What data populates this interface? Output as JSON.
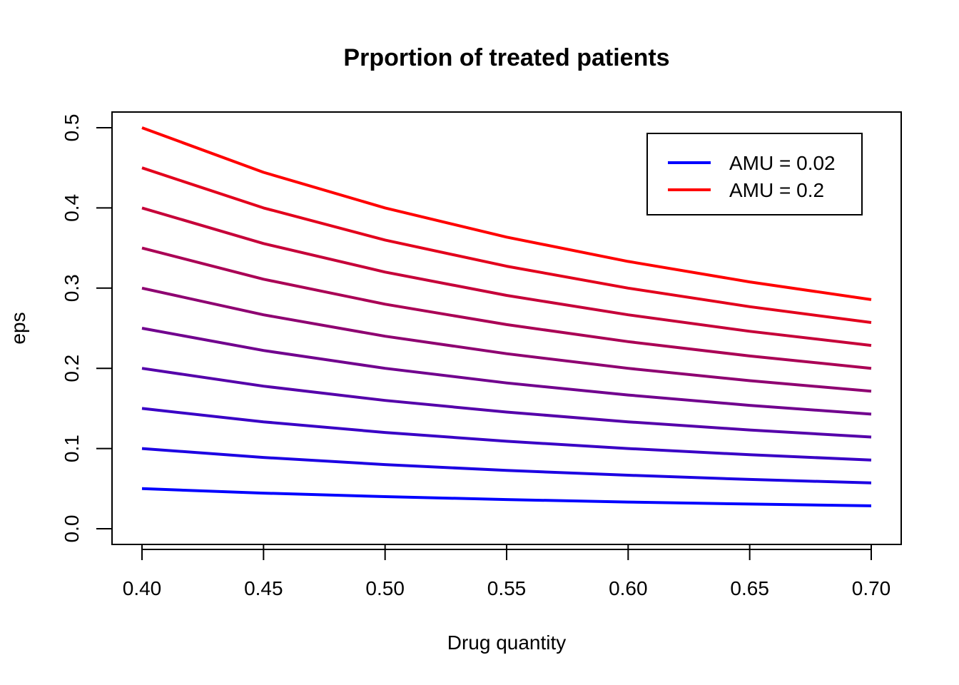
{
  "chart_data": {
    "type": "line",
    "title": "Prportion of treated patients",
    "xlabel": "Drug quantity",
    "ylabel": "eps",
    "xlim": [
      0.4,
      0.7
    ],
    "ylim": [
      0.0,
      0.5
    ],
    "x_ticks": [
      "0.40",
      "0.45",
      "0.50",
      "0.55",
      "0.60",
      "0.65",
      "0.70"
    ],
    "y_ticks": [
      "0.0",
      "0.1",
      "0.2",
      "0.3",
      "0.4",
      "0.5"
    ],
    "x": [
      0.4,
      0.45,
      0.5,
      0.55,
      0.6,
      0.65,
      0.7
    ],
    "grid": false,
    "legend_position": "top-right",
    "legend": [
      {
        "label": "AMU = 0.02",
        "color": "#0000FF"
      },
      {
        "label": "AMU = 0.2",
        "color": "#FF0000"
      }
    ],
    "series": [
      {
        "color": "#0000FF",
        "values": [
          0.05,
          0.0444,
          0.04,
          0.0364,
          0.0333,
          0.0308,
          0.0286
        ]
      },
      {
        "color": "#1C00E3",
        "values": [
          0.1,
          0.0889,
          0.08,
          0.0727,
          0.0667,
          0.0615,
          0.0571
        ]
      },
      {
        "color": "#3900C6",
        "values": [
          0.15,
          0.1333,
          0.12,
          0.1091,
          0.1,
          0.0923,
          0.0857
        ]
      },
      {
        "color": "#5500AA",
        "values": [
          0.2,
          0.1778,
          0.16,
          0.1455,
          0.1333,
          0.1231,
          0.1143
        ]
      },
      {
        "color": "#71008E",
        "values": [
          0.25,
          0.2222,
          0.2,
          0.1818,
          0.1667,
          0.1538,
          0.1429
        ]
      },
      {
        "color": "#8E0071",
        "values": [
          0.3,
          0.2667,
          0.24,
          0.2182,
          0.2,
          0.1846,
          0.1714
        ]
      },
      {
        "color": "#AA0055",
        "values": [
          0.35,
          0.3111,
          0.28,
          0.2545,
          0.2333,
          0.2154,
          0.2
        ]
      },
      {
        "color": "#C60039",
        "values": [
          0.4,
          0.3556,
          0.32,
          0.2909,
          0.2667,
          0.2462,
          0.2286
        ]
      },
      {
        "color": "#E3001C",
        "values": [
          0.45,
          0.4,
          0.36,
          0.3273,
          0.3,
          0.2769,
          0.2571
        ]
      },
      {
        "color": "#FF0000",
        "values": [
          0.5,
          0.4444,
          0.4,
          0.3636,
          0.3333,
          0.3077,
          0.2857
        ]
      }
    ]
  }
}
